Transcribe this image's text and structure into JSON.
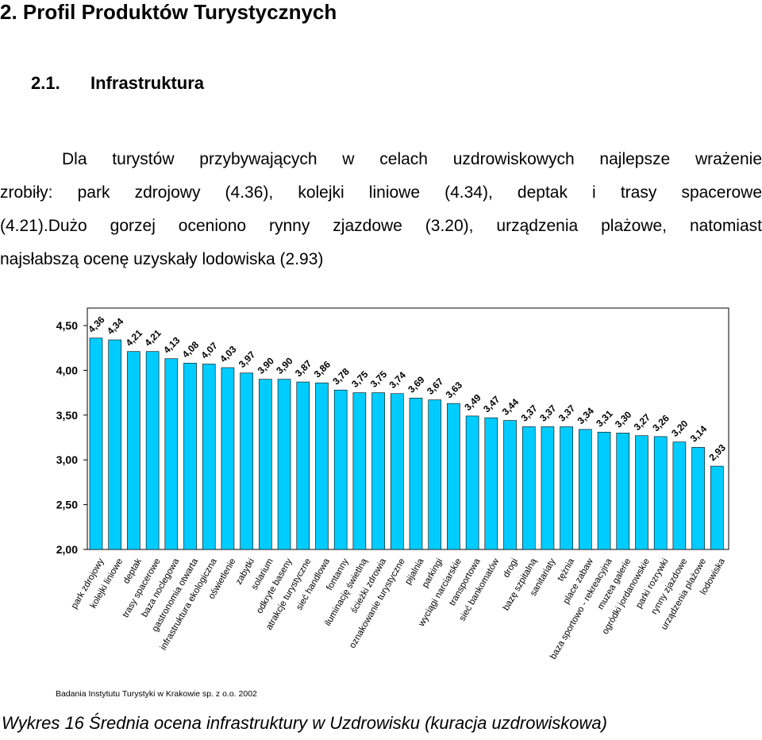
{
  "heading": "2. Profil Produktów Turystycznych",
  "subheading": {
    "number": "2.1.",
    "title": "Infrastruktura"
  },
  "paragraph_lines": [
    "Dla turystów przybywających w celach uzdrowiskowych najlepsze wrażenie",
    "zrobiły: park zdrojowy (4.36), kolejki liniowe (4.34), deptak i trasy spacerowe",
    "(4.21).Dużo gorzej oceniono rynny zjazdowe (3.20), urządzenia plażowe, natomiast",
    "najsłabszą ocenę uzyskały lodowiska (2.93)"
  ],
  "caption": "Wykres 16 Średnia ocena infrastruktury w Uzdrowisku (kuracja uzdrowiskowa)",
  "chart_data": {
    "type": "bar",
    "title": "",
    "xlabel": "",
    "ylabel": "",
    "ylim": [
      2.0,
      4.5
    ],
    "yticks": [
      "4,50",
      "4,00",
      "3,50",
      "3,00",
      "2,50",
      "2,00"
    ],
    "bar_color": "#00ccff",
    "categories": [
      "park zdrojowy",
      "kolejki liniowe",
      "deptak",
      "trasy spacerowe",
      "baza noclegowa",
      "gastronomia otwarta",
      "infrastruktura ekologiczna",
      "oświetlenie",
      "zabytki",
      "solarium",
      "odkryte baseny",
      "atrakcje turystyczne",
      "sieć handlowa",
      "fontanny",
      "iluminację świetlną",
      "ścieżki zdrowia",
      "oznakowanie turystyczne",
      "pijalnia",
      "parkingi",
      "wyciągi narciarskie",
      "transportowa",
      "sieć bankomatów",
      "drogi",
      "bazę szpitalną",
      "sanitariaty",
      "tężnia",
      "place zabaw",
      "baza sportowo - rekreacyjna",
      "muzea galerie",
      "ogródki jordanowskie",
      "parki rozrywki",
      "rynny zjazdowe",
      "urządzenia plażowe",
      "lodowiska"
    ],
    "values": [
      4.36,
      4.34,
      4.21,
      4.21,
      4.13,
      4.08,
      4.07,
      4.03,
      3.97,
      3.9,
      3.9,
      3.87,
      3.86,
      3.78,
      3.75,
      3.75,
      3.74,
      3.69,
      3.67,
      3.63,
      3.49,
      3.47,
      3.44,
      3.37,
      3.37,
      3.37,
      3.34,
      3.31,
      3.3,
      3.27,
      3.26,
      3.2,
      3.14,
      2.93
    ],
    "value_labels": [
      "4,36",
      "4,34",
      "4,21",
      "4,21",
      "4,13",
      "4,08",
      "4,07",
      "4,03",
      "3,97",
      "3,90",
      "3,90",
      "3,87",
      "3,86",
      "3,78",
      "3,75",
      "3,75",
      "3,74",
      "3,69",
      "3,67",
      "3,63",
      "3,49",
      "3,47",
      "3,44",
      "3,37",
      "3,37",
      "3,37",
      "3,34",
      "3,31",
      "3,30",
      "3,27",
      "3,26",
      "3,20",
      "3,14",
      "2,93"
    ],
    "source_note": "Badania Instytutu Turystyki w Krakowie sp. z o.o. 2002"
  }
}
